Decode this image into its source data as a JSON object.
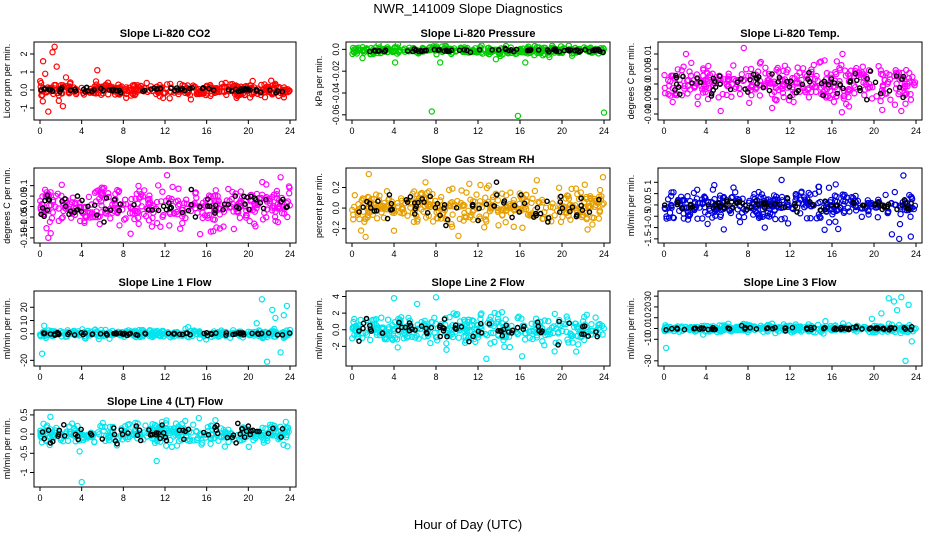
{
  "page": {
    "title": "NWR_141009  Slope Diagnostics",
    "x_title": "Hour of Day (UTC)"
  },
  "chart_data": [
    {
      "type": "scatter",
      "title": "Slope Li-820 CO2",
      "ylabel": "Licor ppm per min.",
      "xlim": [
        0,
        24
      ],
      "x_ticks": [
        0,
        4,
        8,
        12,
        16,
        20,
        24
      ],
      "ylim": [
        -1.5,
        2.5
      ],
      "y_ticks": [
        -1,
        0,
        1,
        2
      ],
      "series": [
        {
          "role": "all",
          "color": "#ff0000",
          "center": 0.0,
          "spread": 0.18,
          "outliers": [
            [
              0.3,
              1.6
            ],
            [
              0.5,
              0.9
            ],
            [
              1.2,
              2.1
            ],
            [
              1.4,
              2.4
            ],
            [
              1.6,
              1.3
            ],
            [
              1.8,
              -0.6
            ],
            [
              2.5,
              0.7
            ],
            [
              0.8,
              -1.2
            ],
            [
              5.5,
              1.1
            ],
            [
              2.2,
              -0.9
            ]
          ]
        },
        {
          "role": "selected",
          "color": "#000000",
          "center": 0.0,
          "spread": 0.06
        }
      ]
    },
    {
      "type": "scatter",
      "title": "Slope Li-820 Pressure",
      "ylabel": "kPa per min.",
      "xlim": [
        0,
        24
      ],
      "x_ticks": [
        0,
        4,
        8,
        12,
        16,
        20,
        24
      ],
      "ylim": [
        -0.062,
        0.004
      ],
      "y_ticks": [
        -0.06,
        -0.04,
        -0.02,
        0.0
      ],
      "series": [
        {
          "role": "all",
          "color": "#00cc00",
          "center": -0.001,
          "spread": 0.0018,
          "outliers": [
            [
              0.4,
              0.001
            ],
            [
              1.0,
              -0.008
            ],
            [
              4.1,
              -0.012
            ],
            [
              7.6,
              -0.057
            ],
            [
              8.4,
              -0.012
            ],
            [
              13.7,
              -0.009
            ],
            [
              15.8,
              -0.061
            ],
            [
              16.5,
              -0.012
            ],
            [
              18.8,
              -0.007
            ],
            [
              24.0,
              -0.058
            ]
          ]
        },
        {
          "role": "selected",
          "color": "#000000",
          "center": -0.001,
          "spread": 0.0008
        }
      ]
    },
    {
      "type": "scatter",
      "title": "Slope Li-820 Temp.",
      "ylabel": "degrees C per min.",
      "xlim": [
        0,
        24
      ],
      "x_ticks": [
        0,
        4,
        8,
        12,
        16,
        20,
        24
      ],
      "ylim": [
        -0.011,
        0.013
      ],
      "y_ticks": [
        -0.01,
        -0.005,
        0.0,
        0.005,
        0.01
      ],
      "series": [
        {
          "role": "all",
          "color": "#ff00ff",
          "center": 0.0,
          "spread": 0.0033,
          "outliers": [
            [
              2.1,
              0.01
            ],
            [
              5.4,
              -0.009
            ],
            [
              7.6,
              0.012
            ],
            [
              10.3,
              -0.008
            ],
            [
              17.0,
              0.01
            ],
            [
              22.6,
              -0.009
            ]
          ]
        },
        {
          "role": "selected",
          "color": "#000000",
          "center": 0.0,
          "spread": 0.002
        }
      ]
    },
    {
      "type": "scatter",
      "title": "Slope Amb. Box Temp.",
      "ylabel": "degrees C per min.",
      "xlim": [
        0,
        24
      ],
      "x_ticks": [
        0,
        4,
        8,
        12,
        16,
        20,
        24
      ],
      "ylim": [
        -0.16,
        0.17
      ],
      "y_ticks": [
        -0.15,
        -0.1,
        -0.05,
        0.0,
        0.05,
        0.1
      ],
      "series": [
        {
          "role": "all",
          "color": "#ff00ff",
          "center": 0.0,
          "spread": 0.045,
          "outliers": [
            [
              8.7,
              -0.13
            ],
            [
              12.2,
              0.15
            ],
            [
              16.4,
              -0.12
            ],
            [
              23.1,
              0.14
            ]
          ]
        },
        {
          "role": "selected",
          "color": "#000000",
          "center": 0.0,
          "spread": 0.03
        }
      ]
    },
    {
      "type": "scatter",
      "title": "Slope Gas Stream RH",
      "ylabel": "percent per min.",
      "xlim": [
        0,
        24
      ],
      "x_ticks": [
        0,
        4,
        8,
        12,
        16,
        20,
        24
      ],
      "ylim": [
        -0.31,
        0.36
      ],
      "y_ticks": [
        -0.2,
        0.0,
        0.2
      ],
      "series": [
        {
          "role": "all",
          "color": "#e69f00",
          "center": 0.0,
          "spread": 0.09,
          "outliers": [
            [
              1.6,
              0.33
            ],
            [
              1.3,
              -0.28
            ],
            [
              7.0,
              0.25
            ],
            [
              17.6,
              0.27
            ],
            [
              23.9,
              0.3
            ],
            [
              4.0,
              -0.22
            ]
          ]
        },
        {
          "role": "selected",
          "color": "#000000",
          "center": 0.0,
          "spread": 0.08
        }
      ]
    },
    {
      "type": "scatter",
      "title": "Slope Sample Flow",
      "ylabel": "ml/min per min.",
      "xlim": [
        0,
        24
      ],
      "x_ticks": [
        0,
        4,
        8,
        12,
        16,
        20,
        24
      ],
      "ylim": [
        -1.55,
        1.5
      ],
      "y_ticks": [
        -1.5,
        -1.0,
        -0.5,
        0.0,
        0.5,
        1.0
      ],
      "series": [
        {
          "role": "all",
          "color": "#0000dd",
          "center": 0.0,
          "spread": 0.32,
          "outliers": [
            [
              11.2,
              1.1
            ],
            [
              15.3,
              -1.1
            ],
            [
              21.7,
              -1.3
            ],
            [
              22.4,
              -1.5
            ],
            [
              22.8,
              1.3
            ],
            [
              23.5,
              -1.4
            ],
            [
              9.6,
              -1.0
            ]
          ]
        },
        {
          "role": "selected",
          "color": "#000000",
          "center": 0.0,
          "spread": 0.15
        }
      ]
    },
    {
      "type": "scatter",
      "title": "Slope Line 1 Flow",
      "ylabel": "ml/min per min.",
      "xlim": [
        0,
        24
      ],
      "x_ticks": [
        0,
        4,
        8,
        12,
        16,
        20,
        24
      ],
      "ylim": [
        -22,
        30
      ],
      "y_ticks": [
        -20,
        0,
        10,
        20
      ],
      "series": [
        {
          "role": "all",
          "color": "#00e5ee",
          "center": 0.0,
          "spread": 1.4,
          "outliers": [
            [
              0.2,
              -15
            ],
            [
              0.4,
              6
            ],
            [
              20.8,
              8
            ],
            [
              21.3,
              26
            ],
            [
              21.8,
              -21
            ],
            [
              22.3,
              18
            ],
            [
              22.6,
              12
            ],
            [
              23.1,
              -14
            ],
            [
              23.4,
              14
            ],
            [
              23.7,
              21
            ]
          ]
        },
        {
          "role": "selected",
          "color": "#000000",
          "center": 0.0,
          "spread": 0.6
        }
      ]
    },
    {
      "type": "scatter",
      "title": "Slope Line 2 Flow",
      "ylabel": "ml/min per min.",
      "xlim": [
        0,
        24
      ],
      "x_ticks": [
        0,
        4,
        8,
        12,
        16,
        20,
        24
      ],
      "ylim": [
        -4.0,
        4.3
      ],
      "y_ticks": [
        -2,
        0,
        2,
        4
      ],
      "series": [
        {
          "role": "all",
          "color": "#00e5ee",
          "center": 0.0,
          "spread": 0.85,
          "outliers": [
            [
              4.0,
              3.8
            ],
            [
              8.0,
              3.9
            ],
            [
              9.0,
              -2.4
            ],
            [
              12.8,
              -3.5
            ],
            [
              16.2,
              -3.2
            ],
            [
              19.3,
              -2.6
            ],
            [
              6.2,
              3.1
            ]
          ]
        },
        {
          "role": "selected",
          "color": "#000000",
          "center": 0.0,
          "spread": 0.6
        }
      ]
    },
    {
      "type": "scatter",
      "title": "Slope Line 3 Flow",
      "ylabel": "ml/min per min.",
      "xlim": [
        0,
        24
      ],
      "x_ticks": [
        0,
        4,
        8,
        12,
        16,
        20,
        24
      ],
      "ylim": [
        -32,
        32
      ],
      "y_ticks": [
        -30,
        -10,
        0,
        10,
        20,
        30
      ],
      "series": [
        {
          "role": "all",
          "color": "#00e5ee",
          "center": 0.0,
          "spread": 1.8,
          "outliers": [
            [
              0.2,
              -18
            ],
            [
              19.8,
              9
            ],
            [
              20.7,
              14
            ],
            [
              21.4,
              28
            ],
            [
              21.9,
              25
            ],
            [
              22.2,
              17
            ],
            [
              22.6,
              29
            ],
            [
              23.0,
              -30
            ],
            [
              23.3,
              22
            ],
            [
              23.6,
              -12
            ]
          ]
        },
        {
          "role": "selected",
          "color": "#000000",
          "center": 0.0,
          "spread": 0.8
        }
      ]
    },
    {
      "type": "scatter",
      "title": "Slope Line 4 (LT) Flow",
      "ylabel": "ml/min per min.",
      "xlim": [
        0,
        24
      ],
      "x_ticks": [
        0,
        4,
        8,
        12,
        16,
        20,
        24
      ],
      "ylim": [
        -1.3,
        0.55
      ],
      "y_ticks": [
        -1.0,
        -0.5,
        0.0,
        0.5
      ],
      "series": [
        {
          "role": "all",
          "color": "#00e5ee",
          "center": 0.0,
          "spread": 0.14,
          "outliers": [
            [
              4.0,
              -1.25
            ],
            [
              1.0,
              0.45
            ],
            [
              11.2,
              -0.7
            ],
            [
              3.8,
              -0.45
            ]
          ]
        },
        {
          "role": "selected",
          "color": "#000000",
          "center": 0.0,
          "spread": 0.12
        }
      ]
    }
  ]
}
